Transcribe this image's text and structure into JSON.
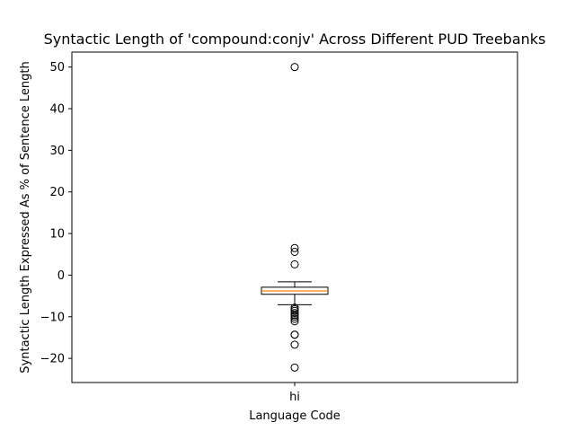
{
  "chart_data": {
    "type": "box",
    "title": "Syntactic Length of 'compound:conjv' Across Different PUD Treebanks",
    "xlabel": "Language Code",
    "ylabel": "Syntactic Length Expressed As % of Sentence Length",
    "categories": [
      "hi"
    ],
    "ylim": [
      -25.8,
      53.6
    ],
    "yticks": [
      -20,
      -10,
      0,
      10,
      20,
      30,
      40,
      50
    ],
    "grid": false,
    "boxes": [
      {
        "category": "hi",
        "whisker_low": -7.1,
        "q1": -4.6,
        "median": -3.8,
        "q3": -2.9,
        "whisker_high": -1.6,
        "outliers": [
          50.0,
          6.5,
          5.6,
          2.6,
          -7.8,
          -8.2,
          -8.6,
          -9.1,
          -9.6,
          -10.0,
          -10.5,
          -11.1,
          -14.3,
          -14.3,
          -16.7,
          -22.2
        ]
      }
    ],
    "colors": {
      "box": "#000000",
      "median": "#ff7f0e",
      "flier": "#000000"
    }
  }
}
